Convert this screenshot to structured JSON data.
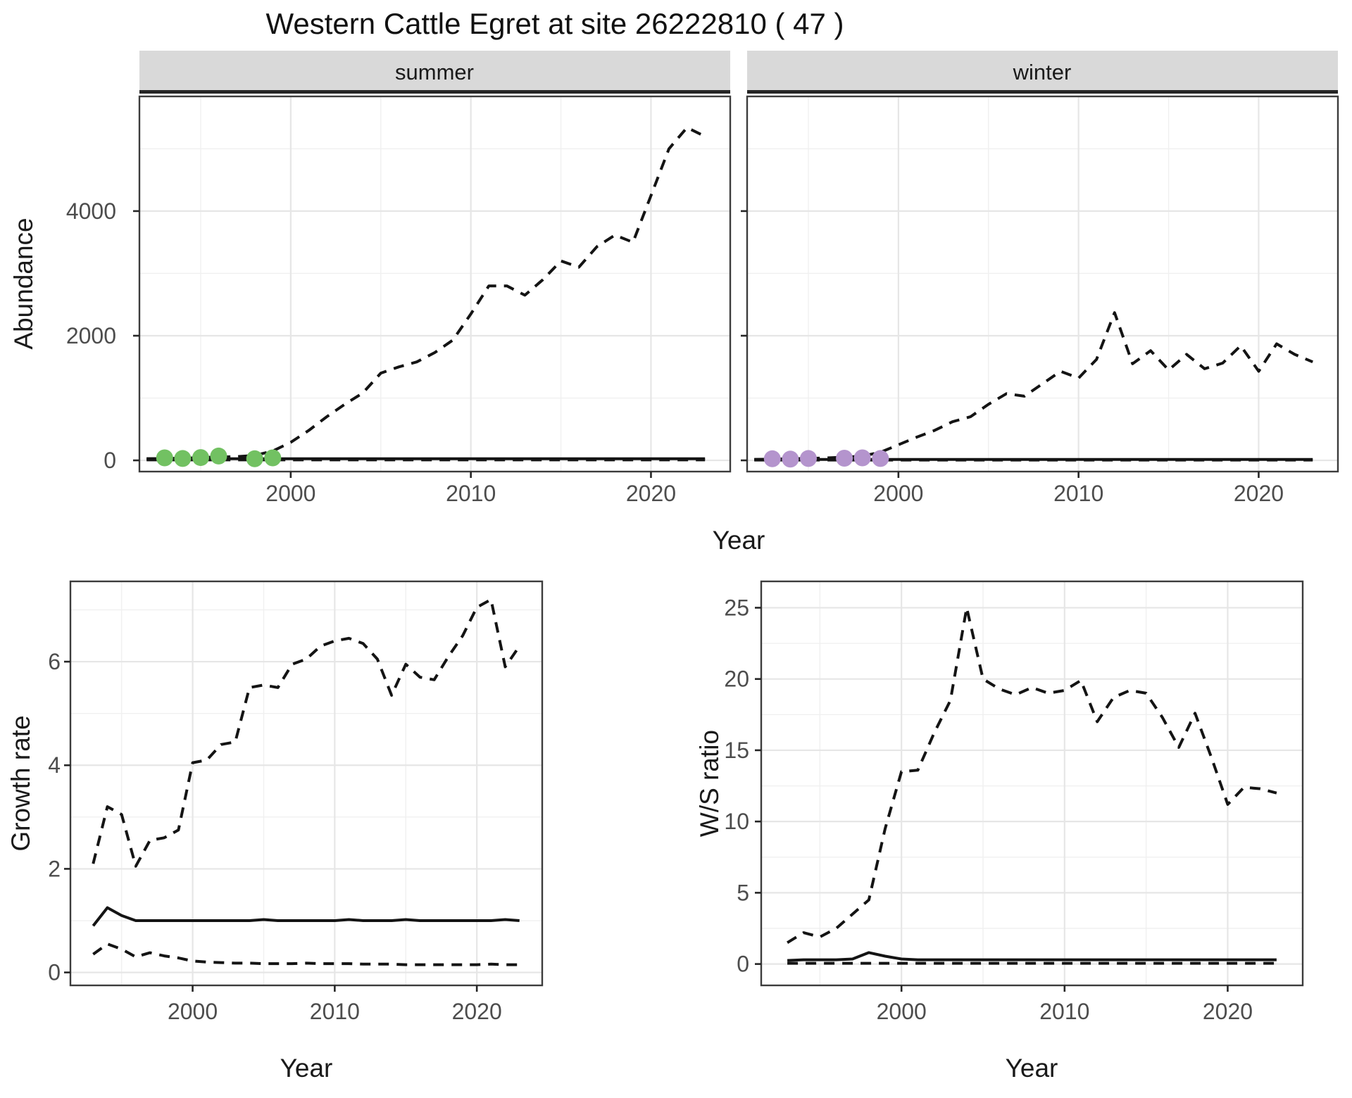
{
  "title": "Western Cattle Egret at site 26222810 ( 47 )",
  "facets": [
    {
      "label": "summer"
    },
    {
      "label": "winter"
    }
  ],
  "axis_titles": {
    "abundance": "Abundance",
    "year": "Year",
    "growth": "Growth rate",
    "ws": "W/S ratio"
  },
  "colors": {
    "summer_dot": "#72c162",
    "winter_dot": "#b494cd",
    "line": "#141414",
    "strip_bg": "#d9d9d9",
    "strip_border": "#262626",
    "panel_border": "#3c3c3c",
    "grid_major": "#e6e6e6",
    "grid_minor": "#f0f0f0",
    "tick": "#262626",
    "tick_text": "#4d4d4d"
  },
  "chart_data": [
    {
      "id": "abundance_summer",
      "type": "line",
      "facet": "summer",
      "xlabel": "Year",
      "ylabel": "Abundance",
      "xlim": [
        1991.6,
        2024.4
      ],
      "ylim": [
        -180,
        5840
      ],
      "x_ticks": [
        2000,
        2010,
        2020
      ],
      "x_minor": [
        1995,
        2005,
        2015
      ],
      "y_ticks": [
        0,
        2000,
        4000
      ],
      "y_minor": [
        1000,
        3000,
        5000
      ],
      "grid": true,
      "series": [
        {
          "name": "upper_ci",
          "style": "dashed",
          "x": [
            1992,
            1993,
            1994,
            1995,
            1996,
            1997,
            1998,
            1999,
            2000,
            2001,
            2002,
            2003,
            2004,
            2005,
            2006,
            2007,
            2008,
            2009,
            2010,
            2011,
            2012,
            2013,
            2014,
            2015,
            2016,
            2017,
            2018,
            2019,
            2020,
            2021,
            2022,
            2023
          ],
          "y": [
            25,
            30,
            35,
            45,
            55,
            60,
            80,
            150,
            290,
            480,
            700,
            900,
            1080,
            1400,
            1500,
            1580,
            1730,
            1930,
            2350,
            2800,
            2800,
            2650,
            2900,
            3200,
            3100,
            3430,
            3615,
            3500,
            4250,
            5000,
            5340,
            5200
          ]
        },
        {
          "name": "lower_ci",
          "style": "dashed",
          "x": [
            1992,
            1993,
            1994,
            1995,
            1996,
            1997,
            1998,
            1999,
            2000,
            2001,
            2002,
            2003,
            2004,
            2005,
            2006,
            2007,
            2008,
            2009,
            2010,
            2011,
            2012,
            2013,
            2014,
            2015,
            2016,
            2017,
            2018,
            2019,
            2020,
            2021,
            2022,
            2023
          ],
          "y": [
            8,
            8,
            8,
            8,
            8,
            8,
            8,
            8,
            8,
            8,
            8,
            8,
            8,
            8,
            8,
            8,
            8,
            8,
            8,
            8,
            8,
            8,
            8,
            8,
            8,
            8,
            8,
            8,
            8,
            8,
            8,
            8
          ]
        },
        {
          "name": "fit",
          "style": "solid",
          "x": [
            1992,
            1993,
            1994,
            1995,
            1996,
            1997,
            1998,
            1999,
            2000,
            2001,
            2002,
            2003,
            2004,
            2005,
            2006,
            2007,
            2008,
            2009,
            2010,
            2011,
            2012,
            2013,
            2014,
            2015,
            2016,
            2017,
            2018,
            2019,
            2020,
            2021,
            2022,
            2023
          ],
          "y": [
            25,
            25,
            25,
            25,
            25,
            25,
            25,
            25,
            25,
            25,
            25,
            25,
            25,
            25,
            25,
            25,
            25,
            25,
            25,
            25,
            25,
            25,
            25,
            25,
            25,
            25,
            25,
            25,
            25,
            25,
            25,
            25
          ]
        }
      ],
      "points": {
        "name": "observed_counts",
        "color": "#72c162",
        "x": [
          1993,
          1994,
          1995,
          1996,
          1998,
          1999
        ],
        "y": [
          40,
          30,
          45,
          70,
          25,
          40
        ]
      }
    },
    {
      "id": "abundance_winter",
      "type": "line",
      "facet": "winter",
      "xlabel": "Year",
      "ylabel": "Abundance",
      "xlim": [
        1991.6,
        2024.4
      ],
      "ylim": [
        -180,
        5840
      ],
      "x_ticks": [
        2000,
        2010,
        2020
      ],
      "x_minor": [
        1995,
        2005,
        2015
      ],
      "y_ticks": [
        0,
        2000,
        4000
      ],
      "y_minor": [
        1000,
        3000,
        5000
      ],
      "grid": true,
      "series": [
        {
          "name": "upper_ci",
          "style": "dashed",
          "x": [
            1992,
            1993,
            1994,
            1995,
            1996,
            1997,
            1998,
            1999,
            2000,
            2001,
            2002,
            2003,
            2004,
            2005,
            2006,
            2007,
            2008,
            2009,
            2010,
            2011,
            2012,
            2013,
            2014,
            2015,
            2016,
            2017,
            2018,
            2019,
            2020,
            2021,
            2022,
            2023
          ],
          "y": [
            15,
            20,
            25,
            30,
            40,
            50,
            70,
            130,
            250,
            370,
            480,
            620,
            700,
            900,
            1070,
            1030,
            1230,
            1430,
            1320,
            1620,
            2370,
            1550,
            1760,
            1450,
            1700,
            1470,
            1560,
            1840,
            1430,
            1870,
            1700,
            1580
          ]
        },
        {
          "name": "lower_ci",
          "style": "dashed",
          "x": [
            1992,
            1993,
            1994,
            1995,
            1996,
            1997,
            1998,
            1999,
            2000,
            2001,
            2002,
            2003,
            2004,
            2005,
            2006,
            2007,
            2008,
            2009,
            2010,
            2011,
            2012,
            2013,
            2014,
            2015,
            2016,
            2017,
            2018,
            2019,
            2020,
            2021,
            2022,
            2023
          ],
          "y": [
            5,
            5,
            5,
            5,
            5,
            5,
            5,
            5,
            5,
            5,
            5,
            5,
            5,
            5,
            5,
            5,
            5,
            5,
            5,
            5,
            5,
            5,
            5,
            5,
            5,
            5,
            5,
            5,
            5,
            5,
            5,
            5
          ]
        },
        {
          "name": "fit",
          "style": "solid",
          "x": [
            1992,
            1993,
            1994,
            1995,
            1996,
            1997,
            1998,
            1999,
            2000,
            2001,
            2002,
            2003,
            2004,
            2005,
            2006,
            2007,
            2008,
            2009,
            2010,
            2011,
            2012,
            2013,
            2014,
            2015,
            2016,
            2017,
            2018,
            2019,
            2020,
            2021,
            2022,
            2023
          ],
          "y": [
            15,
            15,
            15,
            15,
            15,
            15,
            15,
            15,
            15,
            15,
            15,
            15,
            15,
            15,
            15,
            15,
            15,
            15,
            15,
            15,
            15,
            15,
            15,
            15,
            15,
            15,
            15,
            15,
            15,
            15,
            15,
            15
          ]
        }
      ],
      "points": {
        "name": "observed_counts",
        "color": "#b494cd",
        "x": [
          1993,
          1994,
          1995,
          1997,
          1998,
          1999
        ],
        "y": [
          25,
          20,
          30,
          35,
          40,
          30
        ]
      }
    },
    {
      "id": "growth_rate",
      "type": "line",
      "xlabel": "Year",
      "ylabel": "Growth rate",
      "xlim": [
        1991.4,
        2024.6
      ],
      "ylim": [
        -0.25,
        7.55
      ],
      "x_ticks": [
        2000,
        2010,
        2020
      ],
      "x_minor": [
        1995,
        2005,
        2015
      ],
      "y_ticks": [
        0,
        2,
        4,
        6
      ],
      "y_minor": [
        1,
        3,
        5,
        7
      ],
      "grid": true,
      "series": [
        {
          "name": "upper_ci",
          "style": "dashed",
          "x": [
            1993,
            1994,
            1995,
            1996,
            1997,
            1998,
            1999,
            2000,
            2001,
            2002,
            2003,
            2004,
            2005,
            2006,
            2007,
            2008,
            2009,
            2010,
            2011,
            2012,
            2013,
            2014,
            2015,
            2016,
            2017,
            2018,
            2019,
            2020,
            2021,
            2022,
            2023
          ],
          "y": [
            2.1,
            3.2,
            3.05,
            2.05,
            2.55,
            2.6,
            2.75,
            4.05,
            4.1,
            4.4,
            4.45,
            5.5,
            5.55,
            5.5,
            5.95,
            6.05,
            6.3,
            6.4,
            6.45,
            6.35,
            6.05,
            5.35,
            5.95,
            5.7,
            5.65,
            6.1,
            6.5,
            7.05,
            7.2,
            5.9,
            6.3
          ]
        },
        {
          "name": "lower_ci",
          "style": "dashed",
          "x": [
            1993,
            1994,
            1995,
            1996,
            1997,
            1998,
            1999,
            2000,
            2001,
            2002,
            2003,
            2004,
            2005,
            2006,
            2007,
            2008,
            2009,
            2010,
            2011,
            2012,
            2013,
            2014,
            2015,
            2016,
            2017,
            2018,
            2019,
            2020,
            2021,
            2022,
            2023
          ],
          "y": [
            0.35,
            0.55,
            0.45,
            0.3,
            0.38,
            0.32,
            0.28,
            0.22,
            0.2,
            0.19,
            0.18,
            0.18,
            0.17,
            0.17,
            0.17,
            0.18,
            0.17,
            0.17,
            0.17,
            0.16,
            0.16,
            0.16,
            0.15,
            0.15,
            0.15,
            0.15,
            0.15,
            0.15,
            0.16,
            0.15,
            0.15
          ]
        },
        {
          "name": "fit",
          "style": "solid",
          "x": [
            1993,
            1994,
            1995,
            1996,
            1997,
            1998,
            1999,
            2000,
            2001,
            2002,
            2003,
            2004,
            2005,
            2006,
            2007,
            2008,
            2009,
            2010,
            2011,
            2012,
            2013,
            2014,
            2015,
            2016,
            2017,
            2018,
            2019,
            2020,
            2021,
            2022,
            2023
          ],
          "y": [
            0.9,
            1.25,
            1.1,
            1.0,
            1.0,
            1.0,
            1.0,
            1.0,
            1.0,
            1.0,
            1.0,
            1.0,
            1.02,
            1.0,
            1.0,
            1.0,
            1.0,
            1.0,
            1.02,
            1.0,
            1.0,
            1.0,
            1.02,
            1.0,
            1.0,
            1.0,
            1.0,
            1.0,
            1.0,
            1.02,
            1.0
          ]
        }
      ]
    },
    {
      "id": "ws_ratio",
      "type": "line",
      "xlabel": "Year",
      "ylabel": "W/S ratio",
      "xlim": [
        1991.4,
        2024.6
      ],
      "ylim": [
        -1.5,
        26.85
      ],
      "x_ticks": [
        2000,
        2010,
        2020
      ],
      "x_minor": [
        1995,
        2005,
        2015
      ],
      "y_ticks": [
        0,
        5,
        10,
        15,
        20,
        25
      ],
      "y_minor": [
        2.5,
        7.5,
        12.5,
        17.5,
        22.5
      ],
      "grid": true,
      "series": [
        {
          "name": "upper_ci",
          "style": "dashed",
          "x": [
            1993,
            1994,
            1995,
            1996,
            1997,
            1998,
            1999,
            2000,
            2001,
            2002,
            2003,
            2004,
            2005,
            2006,
            2007,
            2008,
            2009,
            2010,
            2011,
            2012,
            2013,
            2014,
            2015,
            2016,
            2017,
            2018,
            2019,
            2020,
            2021,
            2022,
            2023
          ],
          "y": [
            1.5,
            2.2,
            1.9,
            2.5,
            3.5,
            4.5,
            9.5,
            13.5,
            13.6,
            16.2,
            18.5,
            25.0,
            20.0,
            19.3,
            18.9,
            19.4,
            19.0,
            19.2,
            19.9,
            17.0,
            18.7,
            19.2,
            19.0,
            17.3,
            15.2,
            17.6,
            14.5,
            11.2,
            12.4,
            12.3,
            12.0
          ]
        },
        {
          "name": "lower_ci",
          "style": "dashed",
          "x": [
            1993,
            1994,
            1995,
            1996,
            1997,
            1998,
            1999,
            2000,
            2001,
            2002,
            2003,
            2004,
            2005,
            2006,
            2007,
            2008,
            2009,
            2010,
            2011,
            2012,
            2013,
            2014,
            2015,
            2016,
            2017,
            2018,
            2019,
            2020,
            2021,
            2022,
            2023
          ],
          "y": [
            0.05,
            0.05,
            0.05,
            0.05,
            0.05,
            0.05,
            0.05,
            0.05,
            0.05,
            0.05,
            0.05,
            0.05,
            0.05,
            0.05,
            0.05,
            0.05,
            0.05,
            0.05,
            0.05,
            0.05,
            0.05,
            0.05,
            0.05,
            0.05,
            0.05,
            0.05,
            0.05,
            0.05,
            0.05,
            0.05,
            0.05
          ]
        },
        {
          "name": "fit",
          "style": "solid",
          "x": [
            1993,
            1994,
            1995,
            1996,
            1997,
            1998,
            1999,
            2000,
            2001,
            2002,
            2003,
            2004,
            2005,
            2006,
            2007,
            2008,
            2009,
            2010,
            2011,
            2012,
            2013,
            2014,
            2015,
            2016,
            2017,
            2018,
            2019,
            2020,
            2021,
            2022,
            2023
          ],
          "y": [
            0.25,
            0.3,
            0.3,
            0.3,
            0.35,
            0.8,
            0.55,
            0.35,
            0.3,
            0.3,
            0.3,
            0.3,
            0.3,
            0.3,
            0.3,
            0.3,
            0.3,
            0.3,
            0.3,
            0.3,
            0.3,
            0.3,
            0.3,
            0.3,
            0.3,
            0.3,
            0.3,
            0.3,
            0.3,
            0.3,
            0.3
          ]
        }
      ]
    }
  ]
}
